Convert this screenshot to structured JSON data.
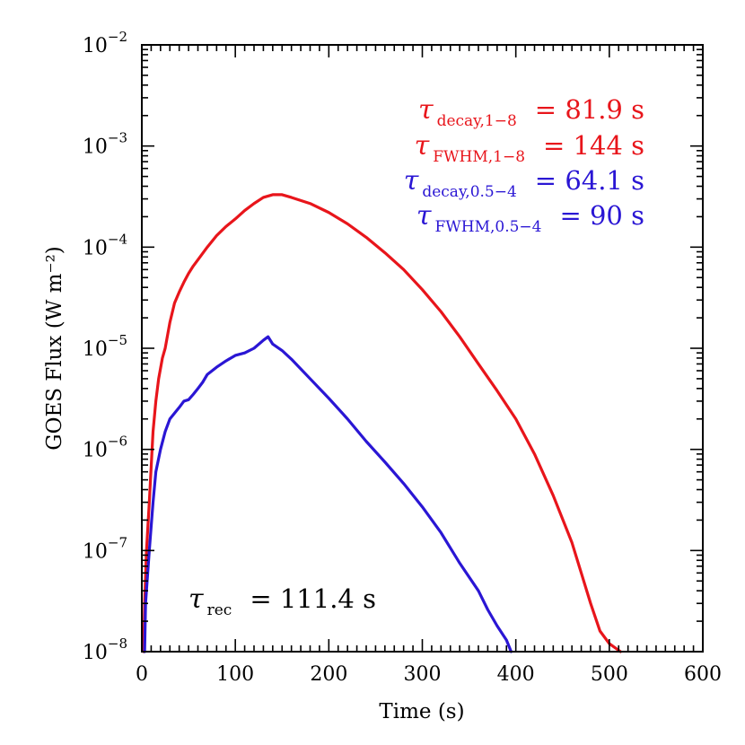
{
  "chart_data": {
    "type": "line",
    "xlabel": "Time (s)",
    "ylabel": "GOES Flux (W m⁻²)",
    "xlim": [
      0,
      600
    ],
    "ylim": [
      1e-08,
      0.01
    ],
    "yscale": "log",
    "x_ticks": [
      0,
      100,
      200,
      300,
      400,
      500,
      600
    ],
    "x_tick_labels": [
      "0",
      "100",
      "200",
      "300",
      "400",
      "500",
      "600"
    ],
    "y_ticks": [
      1e-08,
      1e-07,
      1e-06,
      1e-05,
      0.0001,
      0.001,
      0.01
    ],
    "y_tick_labels": [
      {
        "base": "10",
        "exp": "−8"
      },
      {
        "base": "10",
        "exp": "−7"
      },
      {
        "base": "10",
        "exp": "−6"
      },
      {
        "base": "10",
        "exp": "−5"
      },
      {
        "base": "10",
        "exp": "−4"
      },
      {
        "base": "10",
        "exp": "−3"
      },
      {
        "base": "10",
        "exp": "−2"
      }
    ],
    "series": [
      {
        "band": "1-8",
        "color": "#e8151b",
        "points": [
          [
            2,
            1e-08
          ],
          [
            3,
            3e-08
          ],
          [
            5,
            1e-07
          ],
          [
            8,
            3e-07
          ],
          [
            12,
            1.5e-06
          ],
          [
            15,
            3e-06
          ],
          [
            18,
            5e-06
          ],
          [
            22,
            8e-06
          ],
          [
            25,
            1e-05
          ],
          [
            30,
            1.8e-05
          ],
          [
            35,
            2.8e-05
          ],
          [
            40,
            3.6e-05
          ],
          [
            45,
            4.5e-05
          ],
          [
            50,
            5.5e-05
          ],
          [
            55,
            6.5e-05
          ],
          [
            60,
            7.5e-05
          ],
          [
            70,
            0.0001
          ],
          [
            80,
            0.00013
          ],
          [
            90,
            0.00016
          ],
          [
            100,
            0.00019
          ],
          [
            110,
            0.00023
          ],
          [
            120,
            0.00027
          ],
          [
            130,
            0.00031
          ],
          [
            140,
            0.00033
          ],
          [
            150,
            0.00033
          ],
          [
            160,
            0.00031
          ],
          [
            180,
            0.00027
          ],
          [
            200,
            0.00022
          ],
          [
            220,
            0.00017
          ],
          [
            240,
            0.000125
          ],
          [
            260,
            8.8e-05
          ],
          [
            280,
            6e-05
          ],
          [
            300,
            3.8e-05
          ],
          [
            320,
            2.3e-05
          ],
          [
            340,
            1.3e-05
          ],
          [
            360,
            7e-06
          ],
          [
            380,
            3.8e-06
          ],
          [
            400,
            2e-06
          ],
          [
            420,
            9e-07
          ],
          [
            440,
            3.5e-07
          ],
          [
            460,
            1.2e-07
          ],
          [
            470,
            6e-08
          ],
          [
            480,
            3e-08
          ],
          [
            490,
            1.6e-08
          ],
          [
            500,
            1.2e-08
          ],
          [
            512,
            1e-08
          ]
        ]
      },
      {
        "band": "0.5-4",
        "color": "#2a16d4",
        "points": [
          [
            3,
            1e-08
          ],
          [
            4,
            3e-08
          ],
          [
            8,
            1e-07
          ],
          [
            12,
            3e-07
          ],
          [
            15,
            6e-07
          ],
          [
            20,
            1e-06
          ],
          [
            25,
            1.5e-06
          ],
          [
            30,
            2e-06
          ],
          [
            40,
            2.6e-06
          ],
          [
            45,
            3e-06
          ],
          [
            50,
            3.1e-06
          ],
          [
            55,
            3.5e-06
          ],
          [
            60,
            4e-06
          ],
          [
            65,
            4.6e-06
          ],
          [
            70,
            5.5e-06
          ],
          [
            80,
            6.5e-06
          ],
          [
            90,
            7.5e-06
          ],
          [
            100,
            8.5e-06
          ],
          [
            110,
            9e-06
          ],
          [
            120,
            1e-05
          ],
          [
            130,
            1.2e-05
          ],
          [
            135,
            1.3e-05
          ],
          [
            140,
            1.1e-05
          ],
          [
            150,
            9.5e-06
          ],
          [
            160,
            7.8e-06
          ],
          [
            180,
            5e-06
          ],
          [
            200,
            3.2e-06
          ],
          [
            220,
            2e-06
          ],
          [
            240,
            1.2e-06
          ],
          [
            260,
            7.5e-07
          ],
          [
            280,
            4.6e-07
          ],
          [
            300,
            2.7e-07
          ],
          [
            320,
            1.5e-07
          ],
          [
            340,
            7.5e-08
          ],
          [
            360,
            4e-08
          ],
          [
            370,
            2.6e-08
          ],
          [
            380,
            1.8e-08
          ],
          [
            390,
            1.3e-08
          ],
          [
            395,
            1e-08
          ]
        ]
      }
    ],
    "annotations": [
      {
        "symbol": "τ",
        "sub": "decay,1−8",
        "value": "= 81.9 s",
        "color": "#e8151b"
      },
      {
        "symbol": "τ",
        "sub": "FWHM,1−8",
        "value": "= 144 s",
        "color": "#e8151b"
      },
      {
        "symbol": "τ",
        "sub": "decay,0.5−4",
        "value": "= 64.1 s",
        "color": "#2a16d4"
      },
      {
        "symbol": "τ",
        "sub": "FWHM,0.5−4",
        "value": "= 90 s",
        "color": "#2a16d4"
      },
      {
        "symbol": "τ",
        "sub": "rec",
        "value": "= 111.4 s",
        "color": "#000000"
      }
    ]
  }
}
